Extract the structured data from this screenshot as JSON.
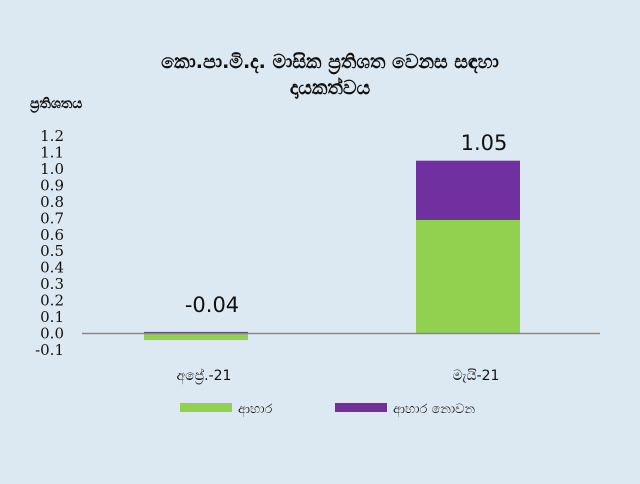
{
  "chart_data": {
    "type": "bar",
    "stacked": true,
    "title_line1": "කො.පා.මි.ද. මාසික ප්‍රතිශත වෙනස සඳහා",
    "title_line2": "දායකත්වය",
    "ylabel": "ප්‍රතිශතය",
    "xlabel": "",
    "categories": [
      "අප්‍රේ.-21",
      "මැයි-21"
    ],
    "series": [
      {
        "name": "ආහාර",
        "values": [
          -0.04,
          0.69
        ],
        "color": "#92d050"
      },
      {
        "name": "ආහාර නොවන",
        "values": [
          0.01,
          0.36
        ],
        "color": "#7030a0"
      }
    ],
    "totals": [
      "-0.04",
      "1.05"
    ],
    "ylim": [
      -0.1,
      1.2
    ],
    "yticks": [
      "1.2",
      "1.1",
      "1.0",
      "0.9",
      "0.8",
      "0.7",
      "0.6",
      "0.5",
      "0.4",
      "0.3",
      "0.2",
      "0.1",
      "0.0",
      "-0.1"
    ],
    "legend_position": "bottom",
    "grid": false
  }
}
